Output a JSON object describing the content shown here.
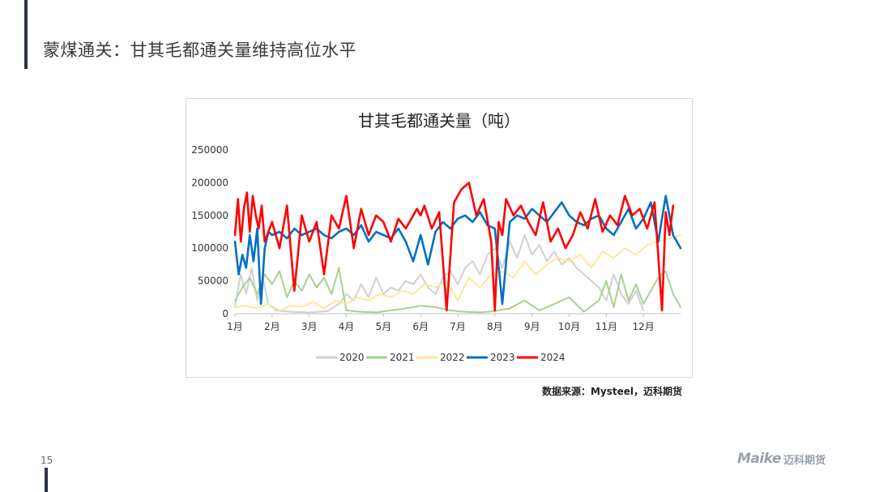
{
  "slide": {
    "title": "蒙煤通关：甘其毛都通关量维持高位水平",
    "source": "数据来源：Mysteel，迈科期货",
    "page_number": "15",
    "logo_mark": "Maike",
    "logo_text": "迈科期货"
  },
  "colors": {
    "2020": "#d0d0d0",
    "2021": "#a9d08e",
    "2022": "#ffe699",
    "2023": "#0070c0",
    "2024": "#ff0000",
    "accent": "#2b3245"
  },
  "chart_data": {
    "type": "line",
    "title": "甘其毛都通关量（吨）",
    "xlabel": "",
    "ylabel": "",
    "ylim": [
      0,
      250000
    ],
    "yticks": [
      "0",
      "50000",
      "100000",
      "150000",
      "200000",
      "250000"
    ],
    "xlim": [
      0,
      12
    ],
    "xticks": [
      "1月",
      "2月",
      "3月",
      "4月",
      "5月",
      "6月",
      "7月",
      "8月",
      "9月",
      "10月",
      "11月",
      "12月"
    ],
    "grid": false,
    "legend_position": "bottom",
    "x_unit_note": "x in months since Jan 1",
    "series": [
      {
        "name": "2020",
        "x": [
          0.0,
          0.15,
          0.3,
          0.45,
          0.6,
          0.75,
          0.9,
          1.1,
          1.5,
          2.0,
          2.5,
          2.8,
          3.0,
          3.2,
          3.4,
          3.6,
          3.8,
          4.0,
          4.2,
          4.4,
          4.6,
          4.8,
          5.0,
          5.2,
          5.4,
          5.6,
          5.8,
          6.0,
          6.2,
          6.4,
          6.6,
          6.8,
          7.0,
          7.2,
          7.4,
          7.6,
          7.8,
          8.0,
          8.2,
          8.4,
          8.6,
          8.8,
          9.0,
          9.2,
          9.4,
          9.6,
          9.8,
          10.0,
          10.2,
          10.4,
          10.6,
          10.8,
          11.0
        ],
        "y": [
          10000,
          60000,
          30000,
          70000,
          20000,
          55000,
          15000,
          5000,
          3000,
          2000,
          4000,
          15000,
          30000,
          20000,
          45000,
          25000,
          55000,
          30000,
          40000,
          35000,
          50000,
          45000,
          60000,
          40000,
          30000,
          55000,
          65000,
          45000,
          70000,
          80000,
          60000,
          90000,
          100000,
          70000,
          110000,
          85000,
          120000,
          90000,
          105000,
          80000,
          95000,
          75000,
          85000,
          70000,
          60000,
          50000,
          40000,
          20000,
          60000,
          30000,
          15000,
          35000,
          5000
        ]
      },
      {
        "name": "2021",
        "x": [
          0.0,
          0.2,
          0.4,
          0.6,
          0.8,
          1.0,
          1.2,
          1.4,
          1.6,
          1.8,
          2.0,
          2.2,
          2.4,
          2.6,
          2.8,
          3.0,
          3.4,
          3.8,
          4.2,
          4.6,
          5.0,
          5.4,
          5.8,
          6.2,
          6.6,
          7.0,
          7.4,
          7.8,
          8.2,
          8.6,
          9.0,
          9.4,
          9.8,
          10.0,
          10.2,
          10.4,
          10.6,
          10.8,
          11.0,
          11.2,
          11.4,
          11.6,
          11.8,
          12.0
        ],
        "y": [
          20000,
          40000,
          55000,
          30000,
          60000,
          45000,
          65000,
          25000,
          50000,
          35000,
          60000,
          40000,
          55000,
          30000,
          70000,
          5000,
          3000,
          2000,
          5000,
          8000,
          12000,
          10000,
          5000,
          3000,
          2000,
          4000,
          8000,
          20000,
          5000,
          15000,
          25000,
          3000,
          20000,
          50000,
          10000,
          60000,
          20000,
          45000,
          15000,
          35000,
          55000,
          65000,
          30000,
          10000
        ]
      },
      {
        "name": "2022",
        "x": [
          0.0,
          0.3,
          0.6,
          0.9,
          1.2,
          1.5,
          1.8,
          2.1,
          2.4,
          2.7,
          3.0,
          3.3,
          3.6,
          3.9,
          4.2,
          4.5,
          4.8,
          5.1,
          5.4,
          5.7,
          6.0,
          6.3,
          6.6,
          6.9,
          7.2,
          7.5,
          7.8,
          8.1,
          8.4,
          8.7,
          9.0,
          9.3,
          9.6,
          9.9,
          10.2,
          10.5,
          10.8,
          11.1,
          11.4,
          11.7,
          12.0
        ],
        "y": [
          10000,
          12000,
          8000,
          15000,
          5000,
          12000,
          10000,
          18000,
          8000,
          20000,
          15000,
          25000,
          20000,
          30000,
          25000,
          35000,
          30000,
          45000,
          40000,
          50000,
          20000,
          55000,
          40000,
          60000,
          65000,
          55000,
          80000,
          60000,
          75000,
          85000,
          80000,
          90000,
          70000,
          95000,
          85000,
          100000,
          90000,
          105000,
          110000,
          115000,
          120000
        ]
      },
      {
        "name": "2023",
        "x": [
          0.0,
          0.1,
          0.2,
          0.3,
          0.4,
          0.5,
          0.6,
          0.7,
          0.8,
          0.9,
          1.0,
          1.2,
          1.4,
          1.6,
          1.8,
          2.0,
          2.2,
          2.4,
          2.6,
          2.8,
          3.0,
          3.2,
          3.4,
          3.6,
          3.8,
          4.0,
          4.2,
          4.4,
          4.6,
          4.8,
          5.0,
          5.2,
          5.4,
          5.6,
          5.8,
          6.0,
          6.2,
          6.4,
          6.6,
          6.8,
          7.0,
          7.2,
          7.4,
          7.6,
          7.8,
          8.0,
          8.2,
          8.4,
          8.6,
          8.8,
          9.0,
          9.2,
          9.4,
          9.6,
          9.8,
          10.0,
          10.2,
          10.4,
          10.6,
          10.8,
          11.0,
          11.2,
          11.4,
          11.6,
          11.8,
          12.0
        ],
        "y": [
          110000,
          60000,
          90000,
          70000,
          120000,
          80000,
          130000,
          15000,
          100000,
          125000,
          120000,
          125000,
          115000,
          130000,
          120000,
          125000,
          130000,
          120000,
          115000,
          125000,
          130000,
          120000,
          135000,
          110000,
          125000,
          120000,
          115000,
          130000,
          110000,
          80000,
          120000,
          75000,
          125000,
          140000,
          130000,
          145000,
          150000,
          140000,
          155000,
          135000,
          130000,
          15000,
          140000,
          150000,
          145000,
          160000,
          150000,
          140000,
          155000,
          170000,
          150000,
          140000,
          135000,
          145000,
          150000,
          130000,
          120000,
          140000,
          160000,
          130000,
          145000,
          170000,
          110000,
          180000,
          120000,
          100000
        ]
      },
      {
        "name": "2024",
        "x": [
          0.0,
          0.08,
          0.16,
          0.24,
          0.32,
          0.4,
          0.48,
          0.56,
          0.64,
          0.72,
          0.8,
          1.0,
          1.2,
          1.4,
          1.6,
          1.8,
          2.0,
          2.2,
          2.4,
          2.6,
          2.8,
          3.0,
          3.2,
          3.4,
          3.6,
          3.8,
          4.0,
          4.2,
          4.4,
          4.6,
          4.8,
          4.9,
          5.0,
          5.1,
          5.3,
          5.5,
          5.7,
          5.9,
          6.1,
          6.3,
          6.5,
          6.7,
          6.9,
          7.0,
          7.1,
          7.2,
          7.3,
          7.5,
          7.7,
          7.9,
          8.1,
          8.3,
          8.5,
          8.7,
          8.9,
          9.1,
          9.3,
          9.5,
          9.7,
          9.9,
          10.1,
          10.3,
          10.5,
          10.7,
          10.9,
          11.1,
          11.3,
          11.5,
          11.6,
          11.7,
          11.8
        ],
        "y": [
          120000,
          175000,
          110000,
          160000,
          185000,
          125000,
          180000,
          150000,
          130000,
          165000,
          110000,
          140000,
          100000,
          165000,
          35000,
          150000,
          110000,
          140000,
          60000,
          150000,
          130000,
          180000,
          100000,
          160000,
          120000,
          150000,
          140000,
          110000,
          145000,
          130000,
          150000,
          160000,
          150000,
          165000,
          130000,
          155000,
          5000,
          170000,
          190000,
          200000,
          150000,
          175000,
          110000,
          5000,
          140000,
          120000,
          175000,
          150000,
          165000,
          140000,
          120000,
          170000,
          110000,
          130000,
          100000,
          120000,
          155000,
          130000,
          175000,
          125000,
          150000,
          135000,
          180000,
          150000,
          160000,
          130000,
          170000,
          5000,
          155000,
          120000,
          165000
        ]
      }
    ]
  }
}
